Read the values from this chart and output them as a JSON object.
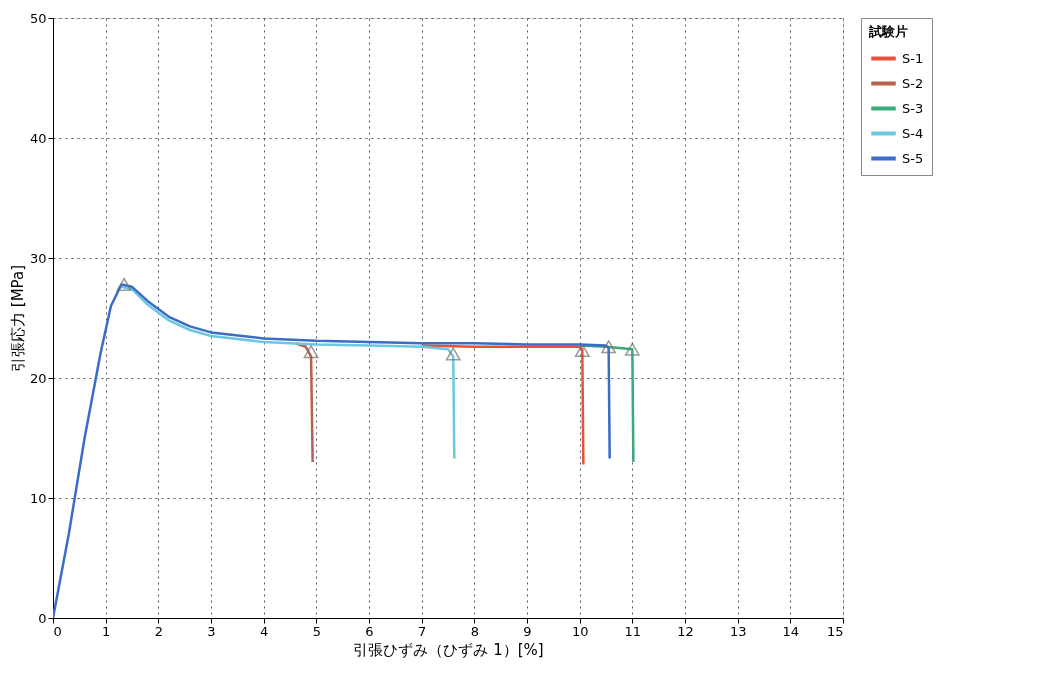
{
  "chart_data": {
    "type": "line",
    "xlabel": "引張ひずみ（ひずみ 1）[%]",
    "ylabel": "引張応力 [MPa]",
    "legend_title": "試験片",
    "xlim": [
      0,
      15
    ],
    "xticks": [
      0,
      1,
      2,
      3,
      4,
      5,
      6,
      7,
      8,
      9,
      10,
      11,
      12,
      13,
      14,
      15
    ],
    "ylim": [
      0,
      50
    ],
    "yticks": [
      0,
      10,
      20,
      30,
      40,
      50
    ],
    "grid": true,
    "legend": "right",
    "line_style": "solid",
    "series": [
      {
        "name": "S-1",
        "color": "#e8503a",
        "x": [
          7,
          8,
          9,
          10,
          10.05,
          10.07
        ],
        "values": [
          22.7,
          22.6,
          22.6,
          22.6,
          22.4,
          12.8
        ]
      },
      {
        "name": "S-2",
        "color": "#b8604a",
        "x": [
          4.6,
          4.8,
          4.9,
          4.93
        ],
        "values": [
          22.9,
          22.6,
          21.8,
          13
        ]
      },
      {
        "name": "S-3",
        "color": "#3aaa78",
        "x": [
          10,
          10.5,
          11.0,
          11.02
        ],
        "values": [
          22.7,
          22.6,
          22.4,
          13
        ]
      },
      {
        "name": "S-4",
        "color": "#6cc8e0",
        "x": [
          1.3,
          1.5,
          1.8,
          2.2,
          2.6,
          3,
          4,
          5,
          6,
          7,
          7.5,
          7.6,
          7.62
        ],
        "values": [
          27.6,
          27.4,
          26.1,
          24.8,
          24,
          23.5,
          23,
          22.8,
          22.7,
          22.6,
          22.4,
          21.8,
          13.3
        ]
      },
      {
        "name": "S-5",
        "color": "#3a6cc8",
        "x": [
          0,
          0.3,
          0.6,
          0.9,
          1.1,
          1.3,
          1.5,
          1.8,
          2.2,
          2.6,
          3,
          4,
          5,
          6,
          7,
          8,
          9,
          10,
          10.5,
          10.55,
          10.57
        ],
        "values": [
          0,
          7,
          15,
          22,
          26,
          27.8,
          27.6,
          26.4,
          25.1,
          24.3,
          23.8,
          23.3,
          23.1,
          23,
          22.9,
          22.9,
          22.8,
          22.8,
          22.7,
          22.5,
          13.3
        ]
      },
      {
        "type": "scatter",
        "marker": "triangle",
        "color": "#707070",
        "x": [
          1.35,
          4.9,
          7.6,
          10.05,
          10.55,
          11.0
        ],
        "values": [
          27.8,
          22.2,
          22.0,
          22.3,
          22.6,
          22.4
        ]
      }
    ]
  }
}
